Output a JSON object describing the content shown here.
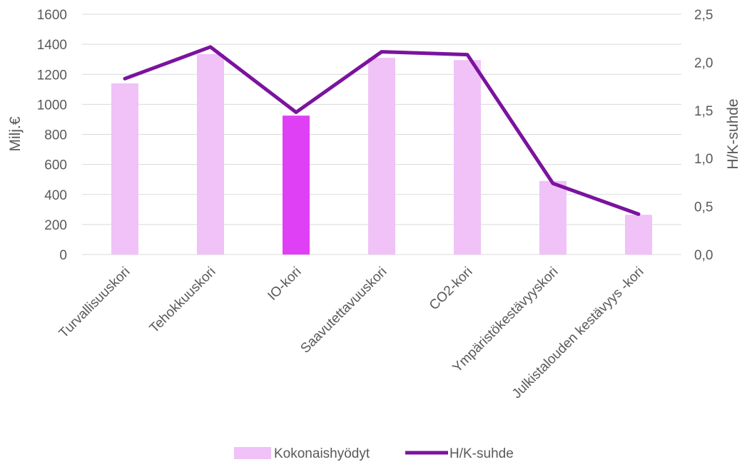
{
  "chart_data": {
    "type": "bar",
    "categories": [
      "Turvallisuuskori",
      "Tehokkuuskori",
      "IO-kori",
      "Saavutettavuuskori",
      "CO2-kori",
      "Ympäristökestävyyskori",
      "Julkistalouden kestävyys -kori"
    ],
    "series": [
      {
        "name": "Kokonaishyödyt",
        "type": "bar",
        "axis": "left",
        "values": [
          1140,
          1335,
          925,
          1310,
          1295,
          490,
          265
        ]
      },
      {
        "name": "H/K-suhde",
        "type": "line",
        "axis": "right",
        "values": [
          1.83,
          2.16,
          1.48,
          2.11,
          2.08,
          0.74,
          0.42
        ]
      }
    ],
    "highlight_index": 2,
    "ylabel": "Milj.€",
    "y2label": "H/K-suhde",
    "ylim": [
      0,
      1600
    ],
    "yticks": [
      "0",
      "200",
      "400",
      "600",
      "800",
      "1000",
      "1200",
      "1400",
      "1600"
    ],
    "y2lim": [
      0,
      2.5
    ],
    "y2ticks": [
      "0,0",
      "0,5",
      "1,0",
      "1,5",
      "2,0",
      "2,5"
    ],
    "grid": true,
    "legend_position": "bottom",
    "colors": {
      "bar": "#f0c2f8",
      "bar_highlight": "#e040f5",
      "line": "#7b139e",
      "grid": "#d9d9d9"
    }
  }
}
